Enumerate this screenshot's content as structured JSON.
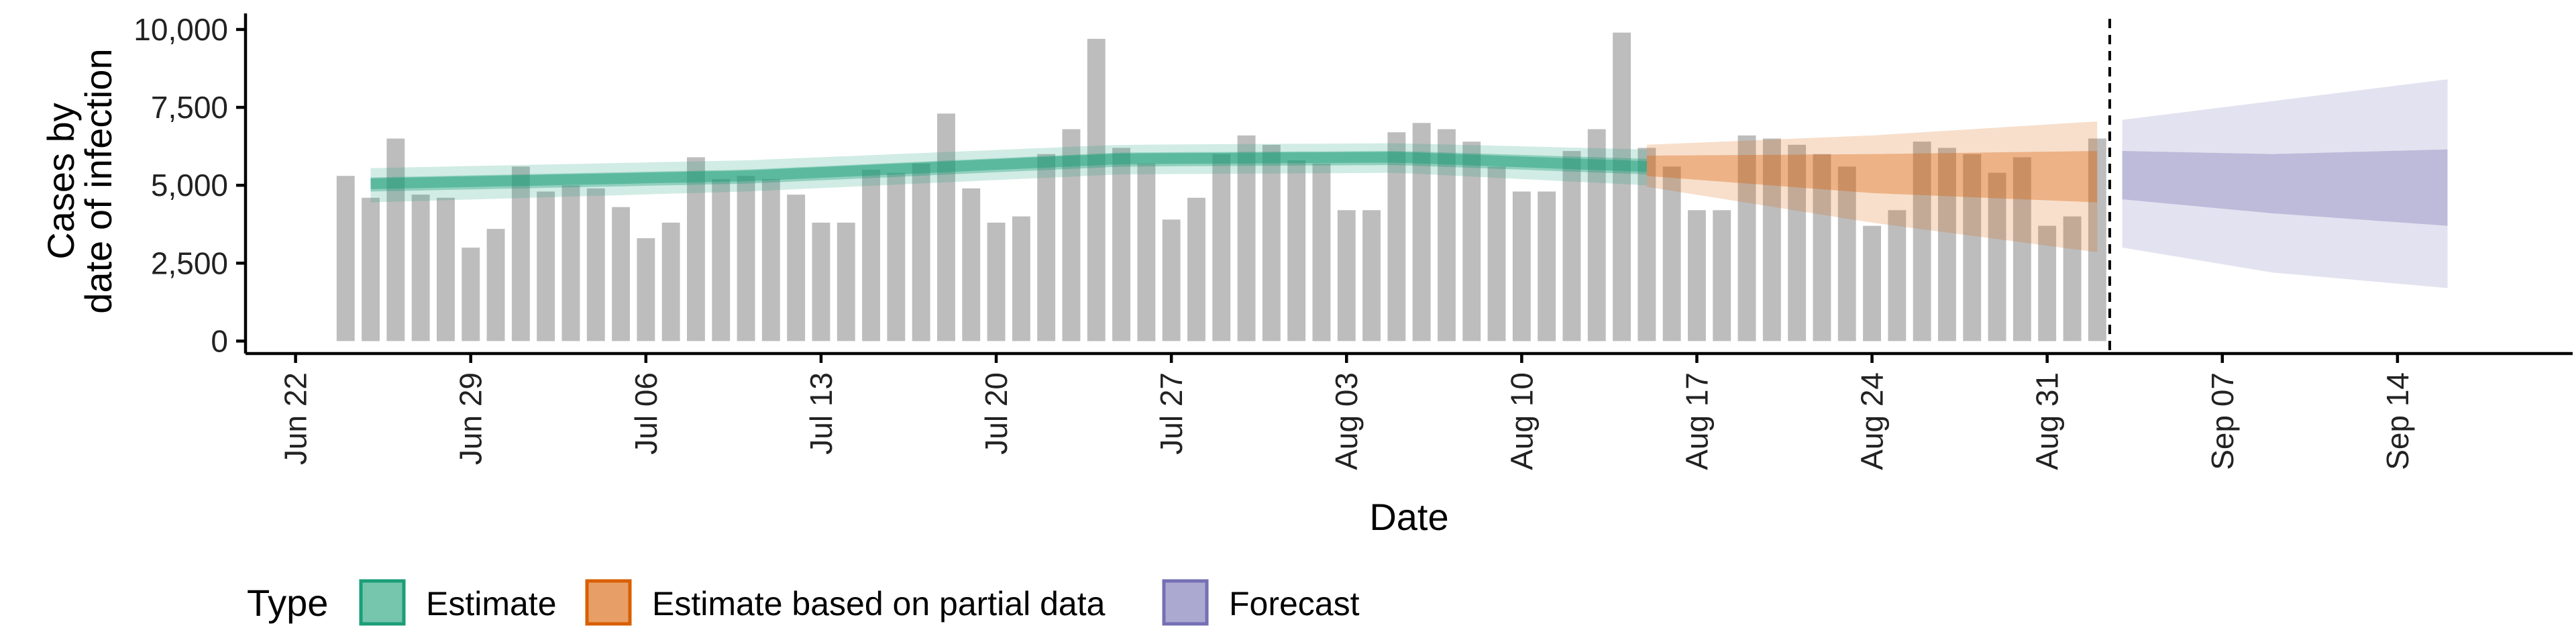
{
  "chart_data": {
    "type": "bar",
    "xlabel": "Date",
    "ylabel_lines": [
      "Cases by",
      "date of infection"
    ],
    "x_tick_labels": [
      "Jun 22",
      "Jun 29",
      "Jul 06",
      "Jul 13",
      "Jul 20",
      "Jul 27",
      "Aug 03",
      "Aug 10",
      "Aug 17",
      "Aug 24",
      "Aug 31",
      "Sep 07",
      "Sep 14"
    ],
    "y_tick_labels": [
      "0",
      "2,500",
      "5,000",
      "7,500",
      "10,000"
    ],
    "y_ticks": [
      0,
      2500,
      5000,
      7500,
      10000
    ],
    "ylim": [
      -400,
      10300
    ],
    "x_start_date": "2020-06-20",
    "x_end_date": "2020-09-21",
    "first_bar_date": "2020-06-24",
    "observed_cases": [
      5300,
      4600,
      6500,
      4700,
      4600,
      3000,
      3600,
      5600,
      4800,
      5000,
      4900,
      4300,
      3300,
      3800,
      5900,
      5200,
      5300,
      5200,
      4700,
      3800,
      3800,
      5500,
      5400,
      5700,
      7300,
      4900,
      3800,
      4000,
      6000,
      6800,
      9700,
      6200,
      5700,
      3900,
      4600,
      6000,
      6600,
      6300,
      5800,
      5700,
      4200,
      4200,
      6700,
      7000,
      6800,
      6400,
      5600,
      4800,
      4800,
      6100,
      6800,
      9900,
      6200,
      5600,
      4200,
      4200,
      6600,
      6500,
      6300,
      6000,
      5600,
      3700,
      4200,
      6400,
      6200,
      6000,
      5400,
      5900,
      3700,
      4000,
      6500
    ],
    "last_observed_date": "2020-09-02",
    "series": [
      {
        "name": "Estimate",
        "color": "#1b9e77",
        "x_start": "2020-06-25",
        "x_end": "2020-08-15",
        "median": [
          5050,
          5600
        ],
        "anchors": [
          {
            "date": "2020-06-25",
            "median": 5050,
            "inner": [
              4800,
              5250
            ],
            "outer": [
              4450,
              5550
            ]
          },
          {
            "date": "2020-07-10",
            "median": 5300,
            "inner": [
              5050,
              5500
            ],
            "outer": [
              4800,
              5800
            ]
          },
          {
            "date": "2020-07-25",
            "median": 5850,
            "inner": [
              5600,
              6050
            ],
            "outer": [
              5350,
              6300
            ]
          },
          {
            "date": "2020-08-05",
            "median": 5900,
            "inner": [
              5650,
              6100
            ],
            "outer": [
              5400,
              6350
            ]
          },
          {
            "date": "2020-08-15",
            "median": 5600,
            "inner": [
              5350,
              5850
            ],
            "outer": [
              5000,
              6150
            ]
          }
        ]
      },
      {
        "name": "Estimate based on partial data",
        "color": "#d95f02",
        "x_start": "2020-08-15",
        "x_end": "2020-09-02",
        "anchors": [
          {
            "date": "2020-08-15",
            "median": 5600,
            "inner": [
              5300,
              5950
            ],
            "outer": [
              4950,
              6300
            ]
          },
          {
            "date": "2020-08-24",
            "median": 5450,
            "inner": [
              4750,
              6000
            ],
            "outer": [
              3800,
              6600
            ]
          },
          {
            "date": "2020-09-02",
            "median": 5300,
            "inner": [
              4450,
              6100
            ],
            "outer": [
              2850,
              7050
            ]
          }
        ]
      },
      {
        "name": "Forecast",
        "color": "#7570b3",
        "x_start": "2020-09-03",
        "x_end": "2020-09-16",
        "anchors": [
          {
            "date": "2020-09-03",
            "median": 5200,
            "inner": [
              4550,
              6100
            ],
            "outer": [
              3000,
              7100
            ]
          },
          {
            "date": "2020-09-09",
            "median": 5000,
            "inner": [
              4100,
              6000
            ],
            "outer": [
              2200,
              7700
            ]
          },
          {
            "date": "2020-09-16",
            "median": 4900,
            "inner": [
              3700,
              6150
            ],
            "outer": [
              1700,
              8400
            ]
          }
        ]
      }
    ],
    "vline_date": "2020-09-02",
    "legend": {
      "title": "Type",
      "position": "bottom",
      "entries": [
        "Estimate",
        "Estimate based on partial data",
        "Forecast"
      ]
    },
    "bar_color": "#bdbdbd",
    "grid": false
  }
}
